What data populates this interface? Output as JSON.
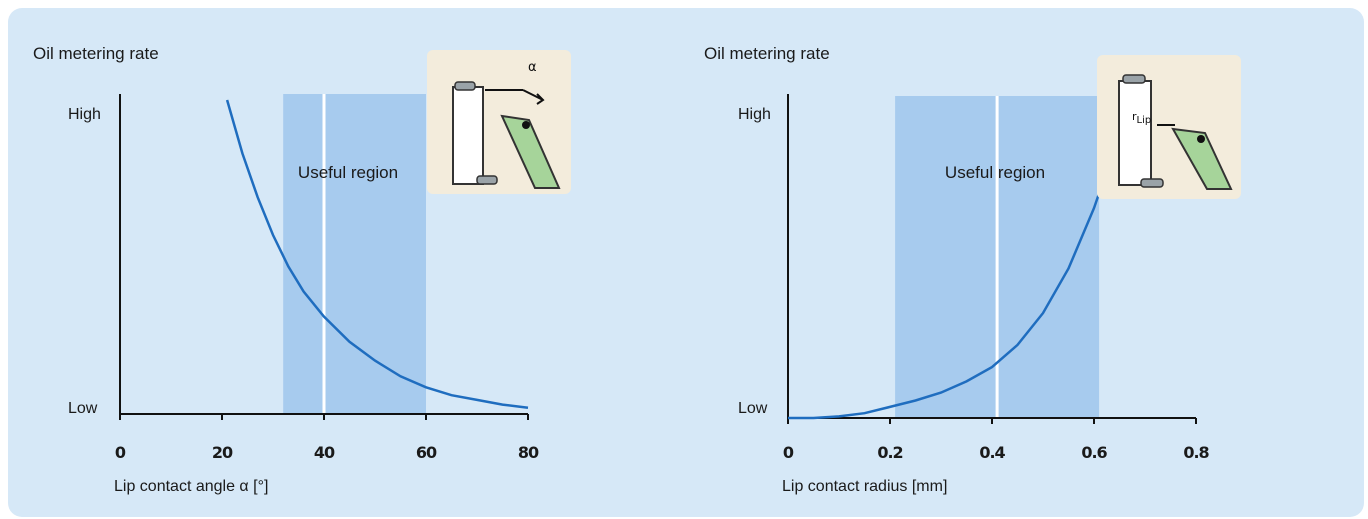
{
  "colors": {
    "panel": "#d6e8f7",
    "region": "#a7cbee",
    "curve": "#1f6dbf",
    "inset_bg": "#f3ecdc",
    "inset_green": "#a6d49a"
  },
  "chart_data": [
    {
      "type": "line",
      "ylabel": "Oil metering rate",
      "y_ticks": [
        "High",
        "Low"
      ],
      "xlabel": "Lip contact angle α [°]",
      "x_ticks": [
        "0",
        "20",
        "40",
        "60",
        "80"
      ],
      "xlim": [
        0,
        80
      ],
      "region_label": "Useful region",
      "region": [
        32,
        60
      ],
      "region_divider": 40,
      "inset_label": "α",
      "series": [
        {
          "x": [
            21,
            24,
            27,
            30,
            33,
            36,
            40,
            45,
            50,
            55,
            60,
            65,
            70,
            75,
            80
          ],
          "y": [
            1.0,
            0.83,
            0.69,
            0.57,
            0.47,
            0.39,
            0.31,
            0.23,
            0.17,
            0.12,
            0.085,
            0.06,
            0.045,
            0.03,
            0.02
          ]
        }
      ]
    },
    {
      "type": "line",
      "ylabel": "Oil metering rate",
      "y_ticks": [
        "High",
        "Low"
      ],
      "xlabel": "Lip contact radius [mm]",
      "x_ticks": [
        "0",
        "0.2",
        "0.4",
        "0.6",
        "0.8"
      ],
      "xlim": [
        0,
        0.8
      ],
      "region_label": "Useful region",
      "region": [
        0.21,
        0.61
      ],
      "region_divider": 0.41,
      "inset_label": "r",
      "inset_sublabel": "Lip",
      "series": [
        {
          "x": [
            0,
            0.05,
            0.1,
            0.15,
            0.2,
            0.25,
            0.3,
            0.35,
            0.4,
            0.45,
            0.5,
            0.55,
            0.6,
            0.63
          ],
          "y": [
            0.0,
            0.0,
            0.005,
            0.015,
            0.035,
            0.055,
            0.08,
            0.115,
            0.16,
            0.23,
            0.33,
            0.47,
            0.66,
            0.8
          ]
        }
      ]
    }
  ]
}
